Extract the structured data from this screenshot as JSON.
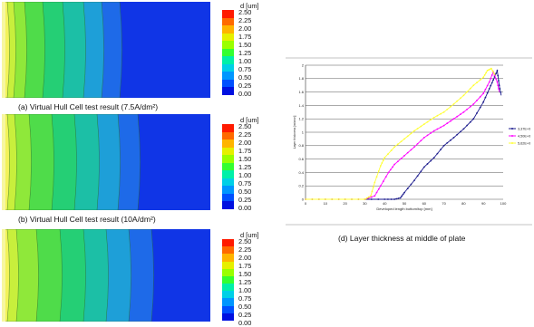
{
  "captions": {
    "panel_a": "(a) Virtual Hull Cell test result (7.5A/dm²)",
    "panel_b": "(b) Virtual Hull Cell test result (10A/dm²)",
    "panel_d": "(d) Layer thickness at middle of plate"
  },
  "legend": {
    "title": "d [um]",
    "ticks": [
      "2.50",
      "2.25",
      "2.00",
      "1.75",
      "1.50",
      "1.25",
      "1.00",
      "0.75",
      "0.50",
      "0.25",
      "0.00"
    ],
    "colors": [
      "#ff1a00",
      "#ff6a00",
      "#ffb400",
      "#e6f000",
      "#9aff00",
      "#34ff30",
      "#00f0a8",
      "#00d0e6",
      "#0096ff",
      "#0050ff",
      "#0010e0"
    ]
  },
  "colors": {
    "background_blue": "#1035e6",
    "series_blue": "#1a1a8c",
    "series_magenta": "#ff00ff",
    "series_yellow": "#ffff33"
  },
  "chart_data": {
    "type": "line",
    "title": "",
    "xlabel": "Developed length bottom/top [mm]",
    "ylabel": "Layer thickness [micron]",
    "xlim": [
      0,
      100
    ],
    "ylim": [
      0,
      2
    ],
    "xticks": [
      "0",
      "10",
      "20",
      "30",
      "40",
      "50",
      "60",
      "70",
      "80",
      "90",
      "100"
    ],
    "yticks": [
      "0",
      "0.2",
      "0.4",
      "0.6",
      "0.8",
      "1",
      "1.2",
      "1.4",
      "1.6",
      "1.8",
      "2"
    ],
    "legend_position": "right",
    "series": [
      {
        "name": "3,37E+0",
        "x": [
          0,
          10,
          20,
          30,
          40,
          45,
          48,
          50,
          55,
          60,
          65,
          70,
          75,
          80,
          85,
          90,
          93,
          95,
          97,
          98,
          99
        ],
        "y": [
          0,
          0,
          0,
          0,
          0,
          0,
          0.02,
          0.1,
          0.28,
          0.48,
          0.62,
          0.8,
          0.92,
          1.05,
          1.2,
          1.45,
          1.65,
          1.78,
          1.92,
          1.7,
          1.55
        ]
      },
      {
        "name": "4,50E+0",
        "x": [
          0,
          10,
          20,
          30,
          35,
          38,
          42,
          45,
          50,
          55,
          60,
          65,
          70,
          75,
          80,
          85,
          90,
          93,
          95,
          97,
          98
        ],
        "y": [
          0,
          0,
          0,
          0,
          0.05,
          0.2,
          0.4,
          0.52,
          0.65,
          0.78,
          0.92,
          1.02,
          1.1,
          1.2,
          1.3,
          1.42,
          1.58,
          1.75,
          1.9,
          1.75,
          1.6
        ]
      },
      {
        "name": "5,62E+0",
        "x": [
          0,
          10,
          20,
          30,
          33,
          35,
          38,
          40,
          45,
          50,
          55,
          60,
          65,
          70,
          75,
          80,
          85,
          90,
          92,
          94,
          96
        ],
        "y": [
          0,
          0,
          0,
          0,
          0.05,
          0.25,
          0.5,
          0.62,
          0.78,
          0.9,
          1.02,
          1.12,
          1.22,
          1.3,
          1.42,
          1.55,
          1.7,
          1.82,
          1.92,
          1.95,
          1.85
        ]
      }
    ]
  }
}
